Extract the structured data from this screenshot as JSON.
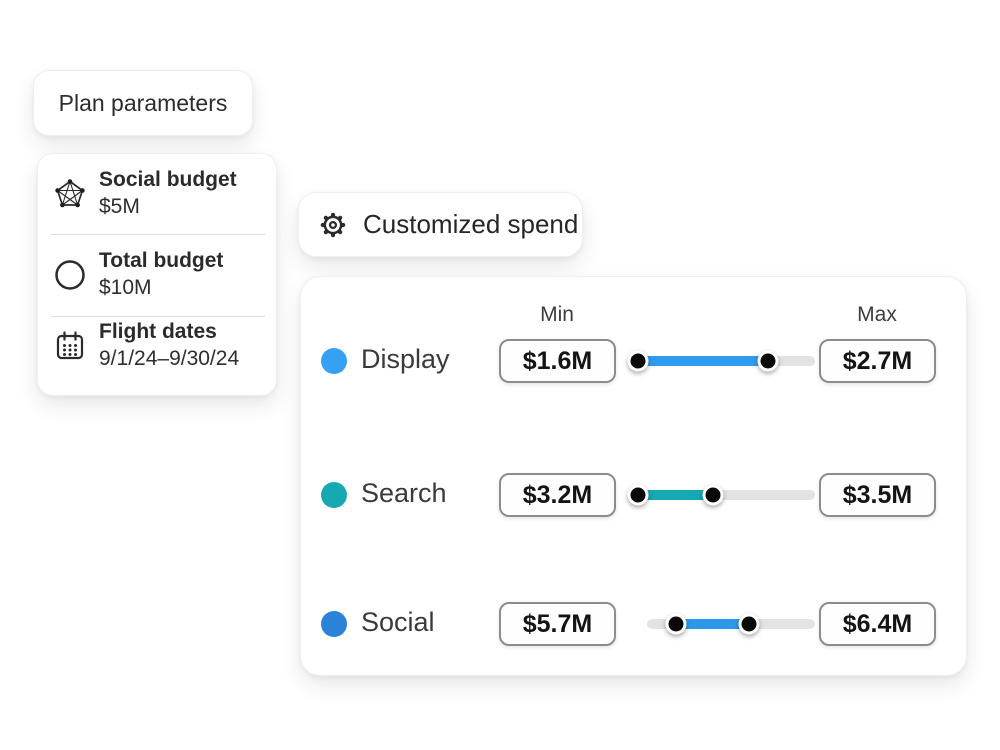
{
  "colors": {
    "track": "#e3e3e3",
    "handle": "#0a0a0a"
  },
  "plan_parameters_card": {
    "title": "Plan parameters"
  },
  "plan_details_card": {
    "items": [
      {
        "icon": "calendar-icon",
        "label": "Flight dates",
        "value": "9/1/24–9/30/24"
      },
      {
        "icon": "circle-icon",
        "label": "Total budget",
        "value": "$10M"
      },
      {
        "icon": "pentagon-network-icon",
        "label": "Social budget",
        "value": "$5M"
      }
    ]
  },
  "customized_spend_button": {
    "icon": "gear-icon",
    "label": "Customized spend"
  },
  "spend_panel": {
    "column_headers": {
      "min": "Min",
      "max": "Max"
    },
    "rows": [
      {
        "channel": "Display",
        "min_value": "$1.6M",
        "max_value": "$2.7M",
        "dot_color": "#36a0f4",
        "fill_color": "#2f9bf0",
        "slider": {
          "track_start_pct": 0,
          "min_pct": 4.8,
          "max_pct": 74.7
        }
      },
      {
        "channel": "Search",
        "min_value": "$3.2M",
        "max_value": "$3.5M",
        "dot_color": "#15a9b4",
        "fill_color": "#15a9b4",
        "slider": {
          "track_start_pct": 0,
          "min_pct": 4.8,
          "max_pct": 45.2
        }
      },
      {
        "channel": "Social",
        "min_value": "$5.7M",
        "max_value": "$6.4M",
        "dot_color": "#2b83d9",
        "fill_color": "#2e97ec",
        "slider": {
          "track_start_pct": 9.7,
          "min_pct": 25.3,
          "max_pct": 64.5
        }
      }
    ]
  }
}
